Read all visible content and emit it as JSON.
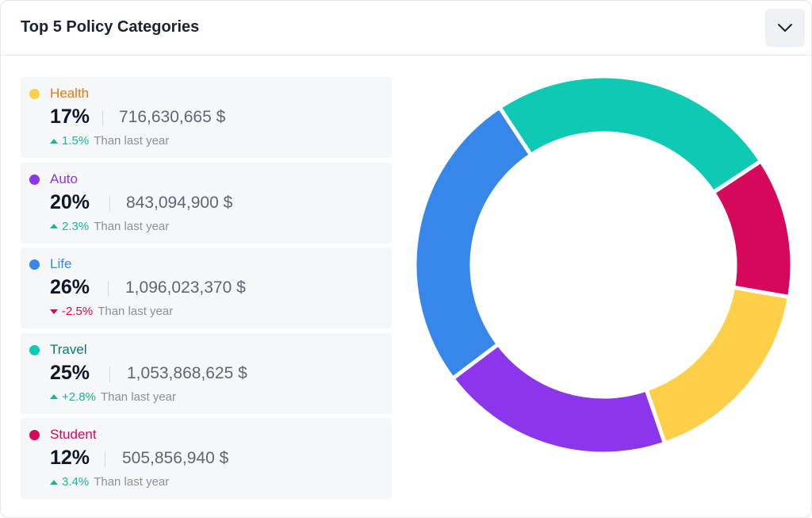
{
  "header": {
    "title": "Top 5 Policy Categories",
    "toggle_icon": "chevron-down-icon"
  },
  "categories": [
    {
      "name": "Health",
      "color": "#fecf49",
      "label_color": "#e07b10",
      "percent": "17%",
      "amount": "716,630,665 $",
      "delta": "1.5%",
      "direction": "up",
      "suffix": "Than last year"
    },
    {
      "name": "Auto",
      "color": "#8b35ec",
      "label_color": "#8b35ec",
      "percent": "20%",
      "amount": "843,094,900 $",
      "delta": "2.3%",
      "direction": "up",
      "suffix": "Than last year"
    },
    {
      "name": "Life",
      "color": "#3787eb",
      "label_color": "#3787eb",
      "percent": "26%",
      "amount": "1,096,023,370 $",
      "delta": "-2.5%",
      "direction": "down",
      "suffix": "Than last year"
    },
    {
      "name": "Travel",
      "color": "#0ec9b3",
      "label_color": "#0d7a6e",
      "percent": "25%",
      "amount": "1,053,868,625 $",
      "delta": "+2.8%",
      "direction": "up",
      "suffix": "Than last year"
    },
    {
      "name": "Student",
      "color": "#d6085b",
      "label_color": "#d6085b",
      "percent": "12%",
      "amount": "505,856,940 $",
      "delta": "3.4%",
      "direction": "up",
      "suffix": "Than last year"
    }
  ],
  "chart_data": {
    "type": "pie",
    "donut": true,
    "categories": [
      "Life",
      "Travel",
      "Student",
      "Health",
      "Auto"
    ],
    "values": [
      26,
      25,
      12,
      17,
      20
    ],
    "colors": [
      "#3787eb",
      "#0ec9b3",
      "#d6085b",
      "#fecf49",
      "#8b35ec"
    ]
  }
}
